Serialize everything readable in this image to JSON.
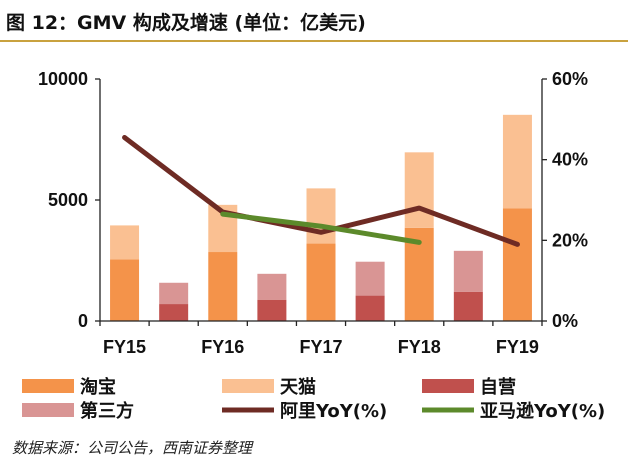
{
  "page": {
    "title": "图 12：GMV 构成及增速 (单位：亿美元)",
    "source": "数据来源：公司公告，西南证券整理"
  },
  "chart_data": {
    "type": "bar",
    "stacked": true,
    "categories": [
      "FY15",
      "",
      "FY16",
      "",
      "FY17",
      "",
      "FY18",
      "",
      "FY19"
    ],
    "left_axis": {
      "ylim": [
        0,
        10000
      ],
      "ticks": [
        "0",
        "5000",
        "10000"
      ],
      "tick_values": [
        0,
        5000,
        10000
      ]
    },
    "right_axis": {
      "ylim": [
        0,
        0.6
      ],
      "ticks": [
        "0%",
        "20%",
        "40%",
        "60%"
      ],
      "tick_values": [
        0,
        0.2,
        0.4,
        0.6
      ]
    },
    "series": [
      {
        "name": "淘宝",
        "kind": "bar",
        "color": "#f4934a",
        "values": [
          2550,
          0,
          2850,
          0,
          3200,
          0,
          3850,
          0,
          4650
        ]
      },
      {
        "name": "天猫",
        "kind": "bar",
        "color": "#fac092",
        "values": [
          1400,
          0,
          1950,
          0,
          2280,
          0,
          3120,
          0,
          3870
        ]
      },
      {
        "name": "自营",
        "kind": "bar",
        "color": "#c0504d",
        "values": [
          0,
          700,
          0,
          880,
          0,
          1050,
          0,
          1200,
          0
        ]
      },
      {
        "name": "第三方",
        "kind": "bar",
        "color": "#d99594",
        "values": [
          0,
          880,
          0,
          1070,
          0,
          1400,
          0,
          1700,
          0
        ]
      },
      {
        "name": "阿里YoY(%)",
        "kind": "line",
        "axis": "right",
        "color": "#6e2b24",
        "values": [
          0.455,
          null,
          0.27,
          null,
          0.22,
          null,
          0.28,
          null,
          0.19
        ]
      },
      {
        "name": "亚马逊YoY(%)",
        "kind": "line",
        "axis": "right",
        "color": "#5c8a2b",
        "values": [
          null,
          null,
          0.265,
          null,
          0.235,
          null,
          0.195,
          null,
          null
        ]
      }
    ],
    "legend_position": "bottom",
    "grid": false
  }
}
